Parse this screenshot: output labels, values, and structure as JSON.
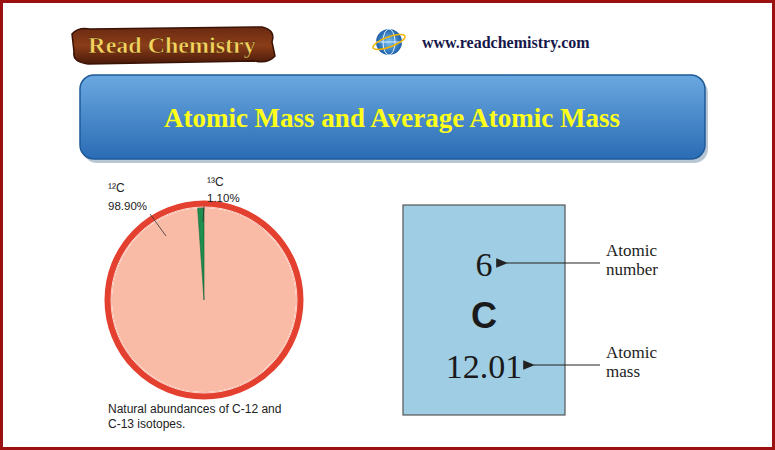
{
  "header": {
    "brand": "Read Chemistry",
    "url": "www.readchemistry.com",
    "title": "Atomic Mass and Average Atomic Mass"
  },
  "chart_data": {
    "type": "pie",
    "categories": [
      "¹²C",
      "¹³C"
    ],
    "values": [
      98.9,
      1.1
    ],
    "value_labels": [
      "98.90%",
      "1.10%"
    ],
    "data_labels": true,
    "colors": [
      "#f9bba6",
      "#1e8f4e"
    ],
    "caption": "Natural abundances of C-12 and C-13 isotopes."
  },
  "element_tile": {
    "atomic_number": 6,
    "symbol": "C",
    "atomic_mass": 12.01,
    "atomic_number_label": "Atomic number",
    "atomic_mass_label": "Atomic mass"
  }
}
